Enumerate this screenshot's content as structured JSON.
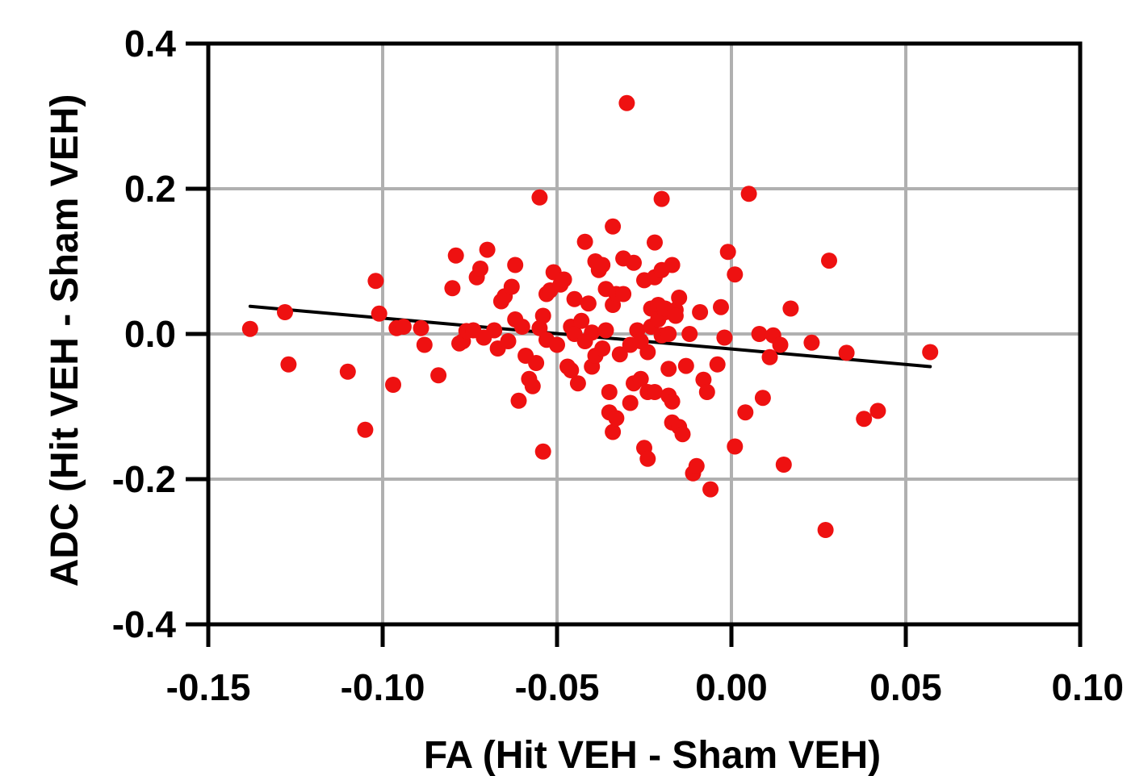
{
  "chart_data": {
    "type": "scatter",
    "title": "",
    "xlabel": "FA (Hit VEH - Sham VEH)",
    "ylabel": "ADC (Hit VEH - Sham VEH)",
    "xlim": [
      -0.15,
      0.1
    ],
    "ylim": [
      -0.4,
      0.4
    ],
    "x_ticks": [
      -0.15,
      -0.1,
      -0.05,
      0.0,
      0.05,
      0.1
    ],
    "x_tick_labels": [
      "-0.15",
      "-0.10",
      "-0.05",
      "0.00",
      "0.05",
      "0.10"
    ],
    "y_ticks": [
      -0.4,
      -0.2,
      0.0,
      0.2,
      0.4
    ],
    "y_tick_labels": [
      "-0.4",
      "-0.2",
      "0.0",
      "0.2",
      "0.4"
    ],
    "grid": true,
    "point_color": "#ee1111",
    "line_color": "#000000",
    "grid_color": "#b0b0b0",
    "fit_line": {
      "x": [
        -0.138,
        0.057
      ],
      "y": [
        0.038,
        -0.045
      ]
    },
    "points": [
      [
        -0.138,
        0.007
      ],
      [
        -0.128,
        0.03
      ],
      [
        -0.127,
        -0.042
      ],
      [
        -0.11,
        -0.052
      ],
      [
        -0.105,
        -0.132
      ],
      [
        -0.102,
        0.073
      ],
      [
        -0.101,
        0.028
      ],
      [
        -0.097,
        -0.07
      ],
      [
        -0.096,
        0.008
      ],
      [
        -0.094,
        0.01
      ],
      [
        -0.089,
        0.008
      ],
      [
        -0.088,
        -0.015
      ],
      [
        -0.084,
        -0.057
      ],
      [
        -0.08,
        0.063
      ],
      [
        -0.079,
        0.108
      ],
      [
        -0.078,
        -0.013
      ],
      [
        -0.077,
        -0.01
      ],
      [
        -0.076,
        0.004
      ],
      [
        -0.074,
        0.005
      ],
      [
        -0.073,
        0.078
      ],
      [
        -0.072,
        0.09
      ],
      [
        -0.071,
        -0.005
      ],
      [
        -0.07,
        0.116
      ],
      [
        -0.068,
        0.005
      ],
      [
        -0.067,
        -0.02
      ],
      [
        -0.066,
        0.045
      ],
      [
        -0.065,
        0.052
      ],
      [
        -0.064,
        -0.01
      ],
      [
        -0.063,
        0.065
      ],
      [
        -0.062,
        0.095
      ],
      [
        -0.062,
        0.02
      ],
      [
        -0.061,
        -0.092
      ],
      [
        -0.06,
        0.01
      ],
      [
        -0.059,
        -0.03
      ],
      [
        -0.058,
        -0.062
      ],
      [
        -0.057,
        -0.072
      ],
      [
        -0.056,
        -0.04
      ],
      [
        -0.055,
        0.008
      ],
      [
        -0.055,
        0.188
      ],
      [
        -0.054,
        -0.162
      ],
      [
        -0.054,
        0.025
      ],
      [
        -0.053,
        -0.008
      ],
      [
        -0.053,
        0.055
      ],
      [
        -0.052,
        0.06
      ],
      [
        -0.051,
        0.085
      ],
      [
        -0.05,
        -0.015
      ],
      [
        -0.049,
        0.068
      ],
      [
        -0.048,
        0.075
      ],
      [
        -0.047,
        -0.045
      ],
      [
        -0.046,
        0.01
      ],
      [
        -0.046,
        -0.05
      ],
      [
        -0.045,
        0.0
      ],
      [
        -0.045,
        0.048
      ],
      [
        -0.044,
        -0.068
      ],
      [
        -0.043,
        0.018
      ],
      [
        -0.042,
        0.127
      ],
      [
        -0.042,
        -0.01
      ],
      [
        -0.041,
        0.042
      ],
      [
        -0.04,
        -0.045
      ],
      [
        -0.04,
        0.002
      ],
      [
        -0.039,
        -0.03
      ],
      [
        -0.039,
        0.1
      ],
      [
        -0.038,
        0.088
      ],
      [
        -0.037,
        0.095
      ],
      [
        -0.037,
        -0.02
      ],
      [
        -0.036,
        0.062
      ],
      [
        -0.036,
        0.005
      ],
      [
        -0.035,
        -0.08
      ],
      [
        -0.035,
        -0.108
      ],
      [
        -0.034,
        0.148
      ],
      [
        -0.034,
        0.04
      ],
      [
        -0.034,
        -0.135
      ],
      [
        -0.033,
        -0.116
      ],
      [
        -0.033,
        0.055
      ],
      [
        -0.032,
        -0.028
      ],
      [
        -0.031,
        0.104
      ],
      [
        -0.031,
        0.055
      ],
      [
        -0.03,
        0.318
      ],
      [
        -0.029,
        -0.095
      ],
      [
        -0.029,
        -0.015
      ],
      [
        -0.028,
        0.098
      ],
      [
        -0.028,
        -0.068
      ],
      [
        -0.027,
        0.005
      ],
      [
        -0.026,
        -0.062
      ],
      [
        -0.026,
        -0.01
      ],
      [
        -0.025,
        0.074
      ],
      [
        -0.025,
        -0.157
      ],
      [
        -0.024,
        -0.172
      ],
      [
        -0.024,
        -0.025
      ],
      [
        -0.024,
        -0.08
      ],
      [
        -0.023,
        0.01
      ],
      [
        -0.023,
        0.035
      ],
      [
        -0.022,
        0.126
      ],
      [
        -0.022,
        0.078
      ],
      [
        -0.022,
        -0.08
      ],
      [
        -0.021,
        0.04
      ],
      [
        -0.021,
        0.02
      ],
      [
        -0.02,
        0.186
      ],
      [
        -0.02,
        0.088
      ],
      [
        -0.02,
        -0.002
      ],
      [
        -0.019,
        0.03
      ],
      [
        -0.019,
        0.035
      ],
      [
        -0.018,
        0.0
      ],
      [
        -0.018,
        -0.048
      ],
      [
        -0.018,
        -0.085
      ],
      [
        -0.017,
        0.095
      ],
      [
        -0.017,
        -0.122
      ],
      [
        -0.017,
        -0.093
      ],
      [
        -0.016,
        0.033
      ],
      [
        -0.016,
        0.025
      ],
      [
        -0.015,
        -0.128
      ],
      [
        -0.015,
        0.05
      ],
      [
        -0.014,
        -0.138
      ],
      [
        -0.013,
        -0.044
      ],
      [
        -0.012,
        0.0
      ],
      [
        -0.011,
        -0.192
      ],
      [
        -0.01,
        -0.182
      ],
      [
        -0.009,
        0.03
      ],
      [
        -0.008,
        -0.063
      ],
      [
        -0.007,
        -0.08
      ],
      [
        -0.006,
        -0.214
      ],
      [
        -0.004,
        -0.042
      ],
      [
        -0.003,
        0.037
      ],
      [
        -0.002,
        -0.005
      ],
      [
        -0.001,
        0.113
      ],
      [
        0.001,
        0.082
      ],
      [
        0.001,
        -0.155
      ],
      [
        0.004,
        -0.108
      ],
      [
        0.005,
        0.193
      ],
      [
        0.008,
        0.0
      ],
      [
        0.009,
        -0.088
      ],
      [
        0.011,
        -0.032
      ],
      [
        0.012,
        -0.002
      ],
      [
        0.014,
        -0.015
      ],
      [
        0.015,
        -0.18
      ],
      [
        0.017,
        0.035
      ],
      [
        0.023,
        -0.012
      ],
      [
        0.027,
        -0.27
      ],
      [
        0.028,
        0.101
      ],
      [
        0.033,
        -0.026
      ],
      [
        0.038,
        -0.117
      ],
      [
        0.042,
        -0.106
      ],
      [
        0.057,
        -0.025
      ]
    ]
  }
}
